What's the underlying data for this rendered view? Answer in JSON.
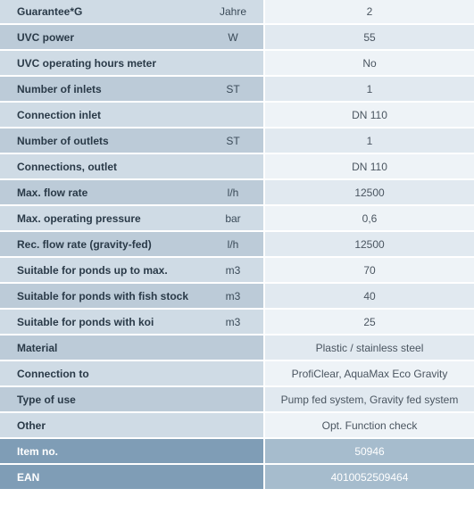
{
  "rows": [
    {
      "label": "Guarantee*G",
      "unit": "Jahre",
      "value": "2"
    },
    {
      "label": "UVC power",
      "unit": "W",
      "value": "55"
    },
    {
      "label": "UVC operating hours meter",
      "unit": "",
      "value": "No"
    },
    {
      "label": "Number of inlets",
      "unit": "ST",
      "value": "1"
    },
    {
      "label": "Connection inlet",
      "unit": "",
      "value": "DN 110"
    },
    {
      "label": "Number of outlets",
      "unit": "ST",
      "value": "1"
    },
    {
      "label": "Connections, outlet",
      "unit": "",
      "value": "DN 110"
    },
    {
      "label": "Max. flow rate",
      "unit": "l/h",
      "value": "12500"
    },
    {
      "label": "Max. operating pressure",
      "unit": "bar",
      "value": "0,6"
    },
    {
      "label": "Rec. flow rate (gravity-fed)",
      "unit": "l/h",
      "value": "12500"
    },
    {
      "label": "Suitable for ponds up to max.",
      "unit": "m3",
      "value": "70"
    },
    {
      "label": "Suitable for ponds with fish stock",
      "unit": "m3",
      "value": "40"
    },
    {
      "label": "Suitable for ponds with koi",
      "unit": "m3",
      "value": "25"
    },
    {
      "label": "Material",
      "unit": "",
      "value": "Plastic / stainless steel"
    },
    {
      "label": "Connection to",
      "unit": "",
      "value": "ProfiClear, AquaMax Eco Gravity"
    },
    {
      "label": "Type of use",
      "unit": "",
      "value": "Pump fed system, Gravity fed system"
    },
    {
      "label": "Other",
      "unit": "",
      "value": "Opt. Function check"
    }
  ],
  "item_no": {
    "label": "Item no.",
    "value": "50946"
  },
  "ean": {
    "label": "EAN",
    "value": "4010052509464"
  },
  "colors": {
    "label_odd": "#cfdbe5",
    "label_even": "#bccbd8",
    "value_odd": "#eef3f7",
    "value_even": "#e1e9f0",
    "highlight": "#7f9db6",
    "highlight_value": "#a6bccd"
  }
}
